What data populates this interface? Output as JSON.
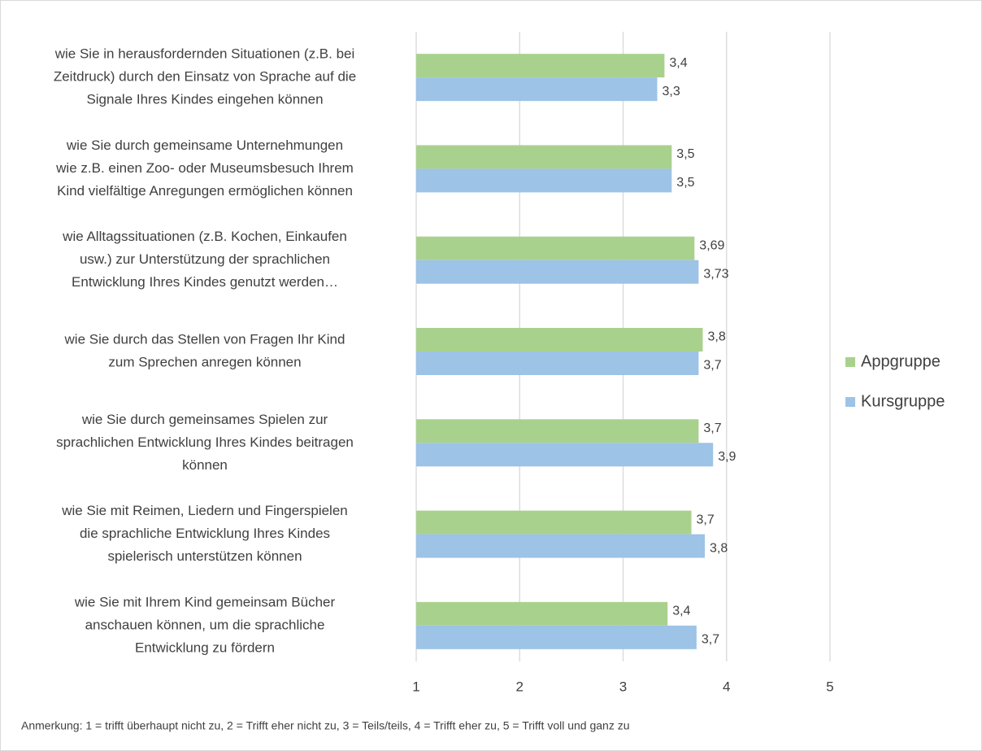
{
  "chart_data": {
    "type": "bar",
    "orientation": "horizontal",
    "categories": [
      [
        "wie Sie in herausfordernden Situationen (z.B. bei",
        "Zeitdruck) durch den Einsatz von Sprache auf die",
        "Signale Ihres Kindes eingehen können"
      ],
      [
        "wie Sie durch gemeinsame Unternehmungen",
        "wie z.B. einen Zoo- oder Museumsbesuch Ihrem",
        "Kind vielfältige Anregungen ermöglichen können"
      ],
      [
        "wie Alltagssituationen (z.B. Kochen, Einkaufen",
        "usw.) zur Unterstützung der sprachlichen",
        "Entwicklung Ihres Kindes genutzt werden…"
      ],
      [
        "wie Sie durch das Stellen von Fragen Ihr Kind",
        "zum Sprechen anregen können"
      ],
      [
        "wie Sie durch gemeinsames Spielen zur",
        "sprachlichen Entwicklung Ihres Kindes beitragen",
        "können"
      ],
      [
        "wie Sie mit Reimen, Liedern und Fingerspielen",
        "die sprachliche Entwicklung Ihres Kindes",
        "spielerisch unterstützen können"
      ],
      [
        "wie Sie mit Ihrem Kind gemeinsam Bücher",
        "anschauen können, um die sprachliche",
        "Entwicklung zu fördern"
      ]
    ],
    "series": [
      {
        "name": "Appgruppe",
        "color": "#a9d18e",
        "values": [
          3.4,
          3.47,
          3.69,
          3.77,
          3.73,
          3.66,
          3.43
        ],
        "value_labels": [
          "3,4",
          "3,5",
          "3,69",
          "3,8",
          "3,7",
          "3,7",
          "3,4"
        ]
      },
      {
        "name": "Kursgruppe",
        "color": "#9dc3e6",
        "values": [
          3.33,
          3.47,
          3.73,
          3.73,
          3.87,
          3.79,
          3.71
        ],
        "value_labels": [
          "3,3",
          "3,5",
          "3,73",
          "3,7",
          "3,9",
          "3,8",
          "3,7"
        ]
      }
    ],
    "xlim": [
      1,
      5
    ],
    "xticks": [
      1,
      2,
      3,
      4,
      5
    ],
    "grid": true,
    "legend": "right",
    "annotation": "Anmerkung: 1 = trifft überhaupt nicht zu, 2 = Trifft eher nicht zu, 3 = Teils/teils, 4 = Trifft eher zu, 5 = Trifft voll und ganz zu"
  }
}
